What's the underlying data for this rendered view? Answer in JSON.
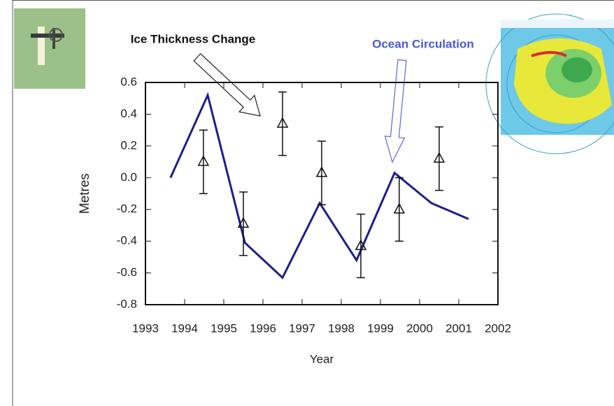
{
  "chart_data": {
    "type": "line",
    "ylabel": "Metres",
    "xlabel": "Year",
    "annotations": [
      "Ice Thickness Change",
      "Ocean Circulation"
    ],
    "xlim": [
      1993,
      2002
    ],
    "xticks": [
      1993,
      1994,
      1995,
      1996,
      1997,
      1998,
      1999,
      2000,
      2001,
      2002
    ],
    "ylim": [
      -0.8,
      0.6
    ],
    "yticks": [
      -0.8,
      -0.6,
      -0.4,
      -0.2,
      {
        "value": 0,
        "label": "0.0"
      },
      0.2,
      0.4,
      0.6
    ],
    "series": [
      {
        "kind": "line",
        "color": "#1c1f8a",
        "x": [
          1993.64,
          1994.59,
          1995.54,
          1996.5,
          1997.45,
          1998.39,
          1999.36,
          2000.3,
          2001.25
        ],
        "values": [
          0.0,
          0.52,
          -0.41,
          -0.63,
          -0.16,
          -0.52,
          0.03,
          -0.16,
          -0.26
        ]
      },
      {
        "kind": "errorbar",
        "color": "#111111",
        "x": [
          1994.48,
          1995.5,
          1996.5,
          1997.5,
          1998.5,
          1999.48,
          2000.5
        ],
        "values": [
          0.1,
          -0.29,
          0.34,
          0.03,
          -0.43,
          -0.2,
          0.12
        ],
        "errors": [
          0.2,
          0.2,
          0.2,
          0.2,
          0.2,
          0.2,
          0.2
        ]
      }
    ]
  }
}
